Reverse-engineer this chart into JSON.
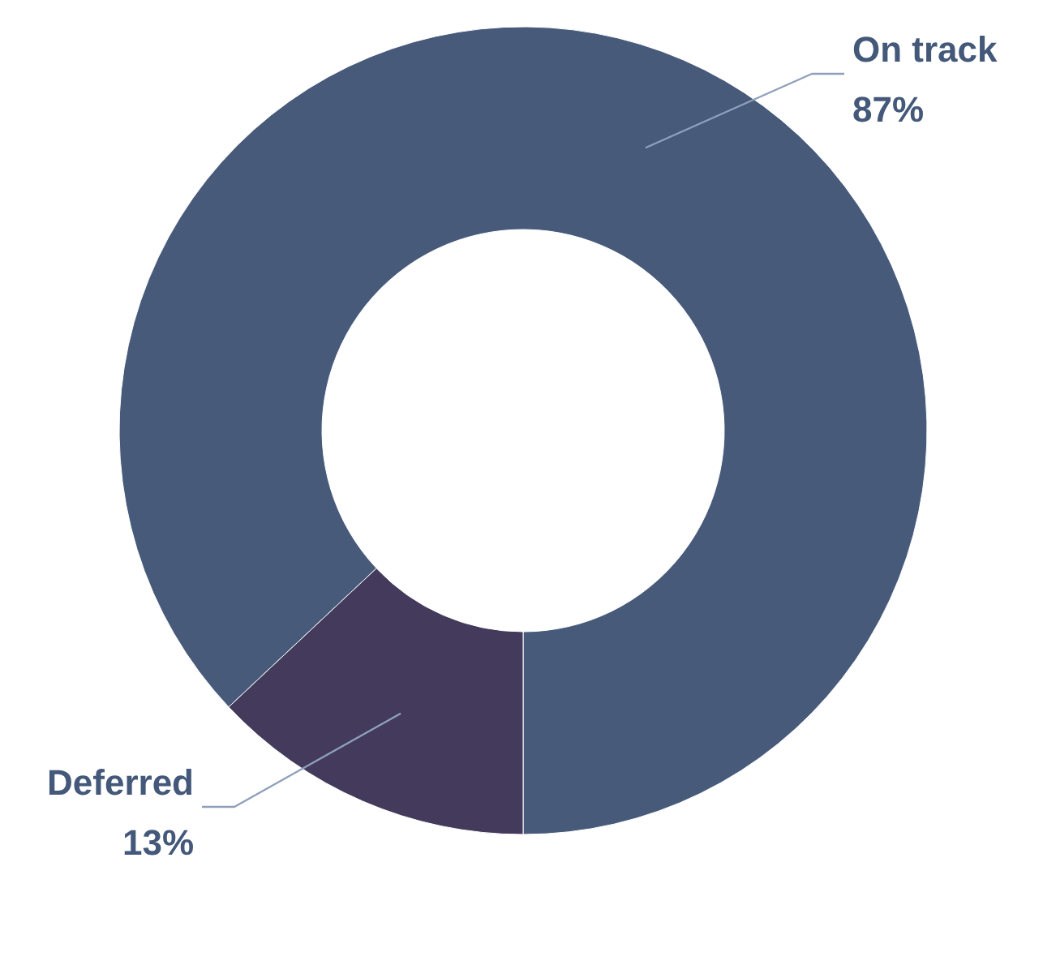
{
  "chart_data": {
    "type": "donut",
    "categories": [
      "On track",
      "Deferred"
    ],
    "values": [
      87,
      13
    ],
    "value_labels": [
      "87%",
      "13%"
    ],
    "colors": [
      "#475a7a",
      "#433a5c"
    ]
  }
}
